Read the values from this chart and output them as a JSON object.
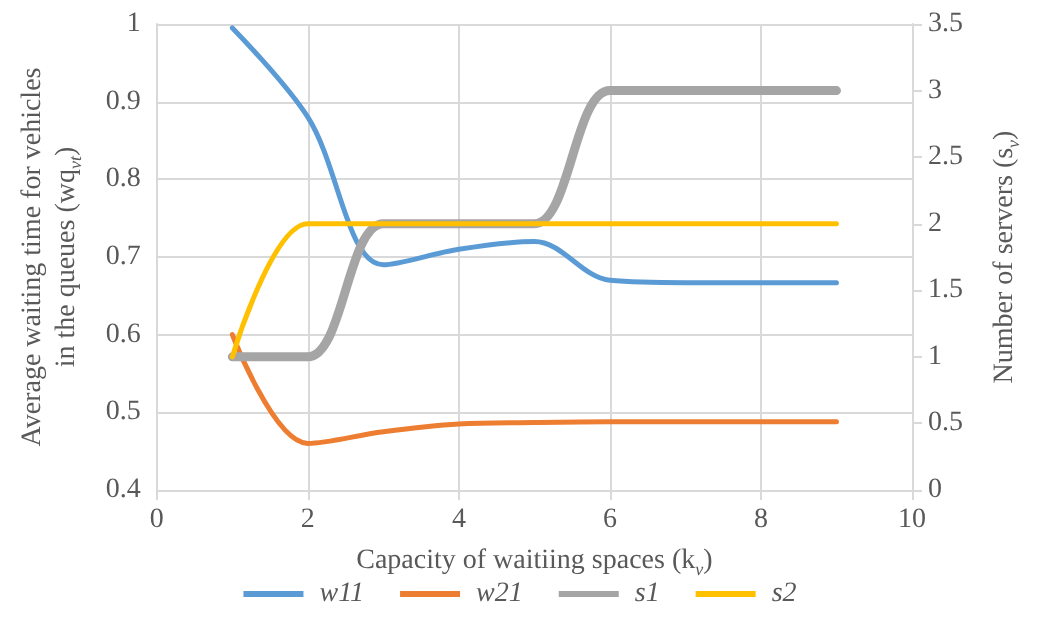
{
  "chart_data": {
    "type": "line",
    "xlabel": "Capacity of waitiing spaces (k$_{v}$)",
    "ylabel": "Average waiting time for vehicles in the queues (wq$_{vt}$)",
    "y2label": "Number of servers (s$_{v}$)",
    "x": [
      1,
      2,
      3,
      4,
      5,
      6,
      7,
      8,
      9
    ],
    "xlim": [
      0,
      10
    ],
    "xticks": [
      0,
      2,
      4,
      6,
      8,
      10
    ],
    "ylim": [
      0.4,
      1
    ],
    "yticks": [
      0.4,
      0.5,
      0.6,
      0.7,
      0.8,
      0.9,
      1
    ],
    "y2lim": [
      0,
      3.5
    ],
    "y2ticks": [
      0,
      0.5,
      1,
      1.5,
      2,
      2.5,
      3,
      3.5
    ],
    "grid": true,
    "legend": "bottom",
    "marker": "none",
    "line_style": "solid",
    "series": [
      {
        "name": "w11",
        "color": "#5b9bd5",
        "values": [
          0.995,
          0.88,
          0.69,
          0.71,
          0.72,
          0.67,
          0.667,
          0.667,
          0.667
        ]
      },
      {
        "name": "w21",
        "color": "#ed7d31",
        "values": [
          0.6,
          0.46,
          0.475,
          0.485,
          0.487,
          0.488,
          0.488,
          0.488,
          0.488
        ]
      },
      {
        "name": "s1",
        "color": "#a5a5a5",
        "axis": "y2",
        "values": [
          1,
          1,
          2,
          2,
          2,
          3,
          3,
          3,
          3
        ]
      },
      {
        "name": "s2",
        "color": "#ffc000",
        "axis": "y2",
        "values": [
          1,
          2,
          2,
          2,
          2,
          2,
          2,
          2,
          2
        ]
      }
    ]
  }
}
